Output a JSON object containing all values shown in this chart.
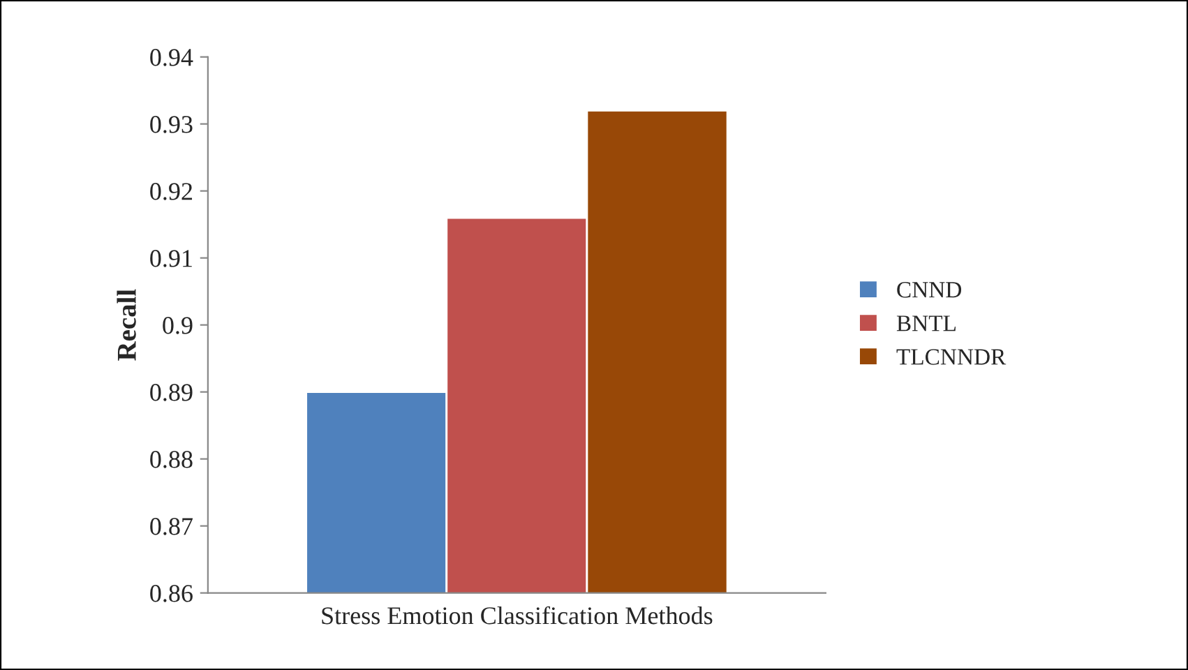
{
  "chart_data": {
    "type": "bar",
    "ylabel": "Recall",
    "categories": [
      "Stress Emotion Classification Methods"
    ],
    "series": [
      {
        "name": "CNND",
        "color": "#4f81bd",
        "values": [
          0.89
        ]
      },
      {
        "name": "BNTL",
        "color": "#c0504d",
        "values": [
          0.916
        ]
      },
      {
        "name": "TLCNNDR",
        "color": "#984807",
        "values": [
          0.932
        ]
      }
    ],
    "ylim": [
      0.86,
      0.94
    ],
    "yticks": [
      0.86,
      0.87,
      0.88,
      0.89,
      0.9,
      0.91,
      0.92,
      0.93,
      0.94
    ],
    "grid": false,
    "legend": "right"
  }
}
